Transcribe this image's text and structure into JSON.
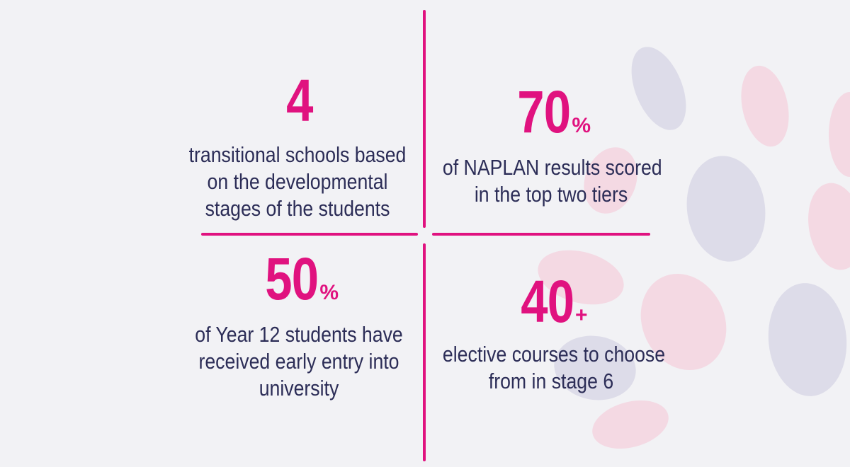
{
  "colors": {
    "accent": "#e0127f",
    "text": "#2c2d57",
    "background": "#f2f2f5",
    "leaf_pink": "#f4d2de",
    "leaf_lavender": "#d9d8e6"
  },
  "stats": [
    {
      "value": "4",
      "suffix": "",
      "lines": [
        "transitional schools based",
        "on the developmental",
        "stages of the students"
      ]
    },
    {
      "value": "70",
      "suffix": "%",
      "lines": [
        "of NAPLAN results scored",
        "in the top two tiers"
      ]
    },
    {
      "value": "50",
      "suffix": "%",
      "lines": [
        "of Year 12 students have",
        "received early entry into",
        "university"
      ]
    },
    {
      "value": "40",
      "suffix": "+",
      "lines": [
        "elective courses to choose",
        "from in stage 6"
      ]
    }
  ]
}
